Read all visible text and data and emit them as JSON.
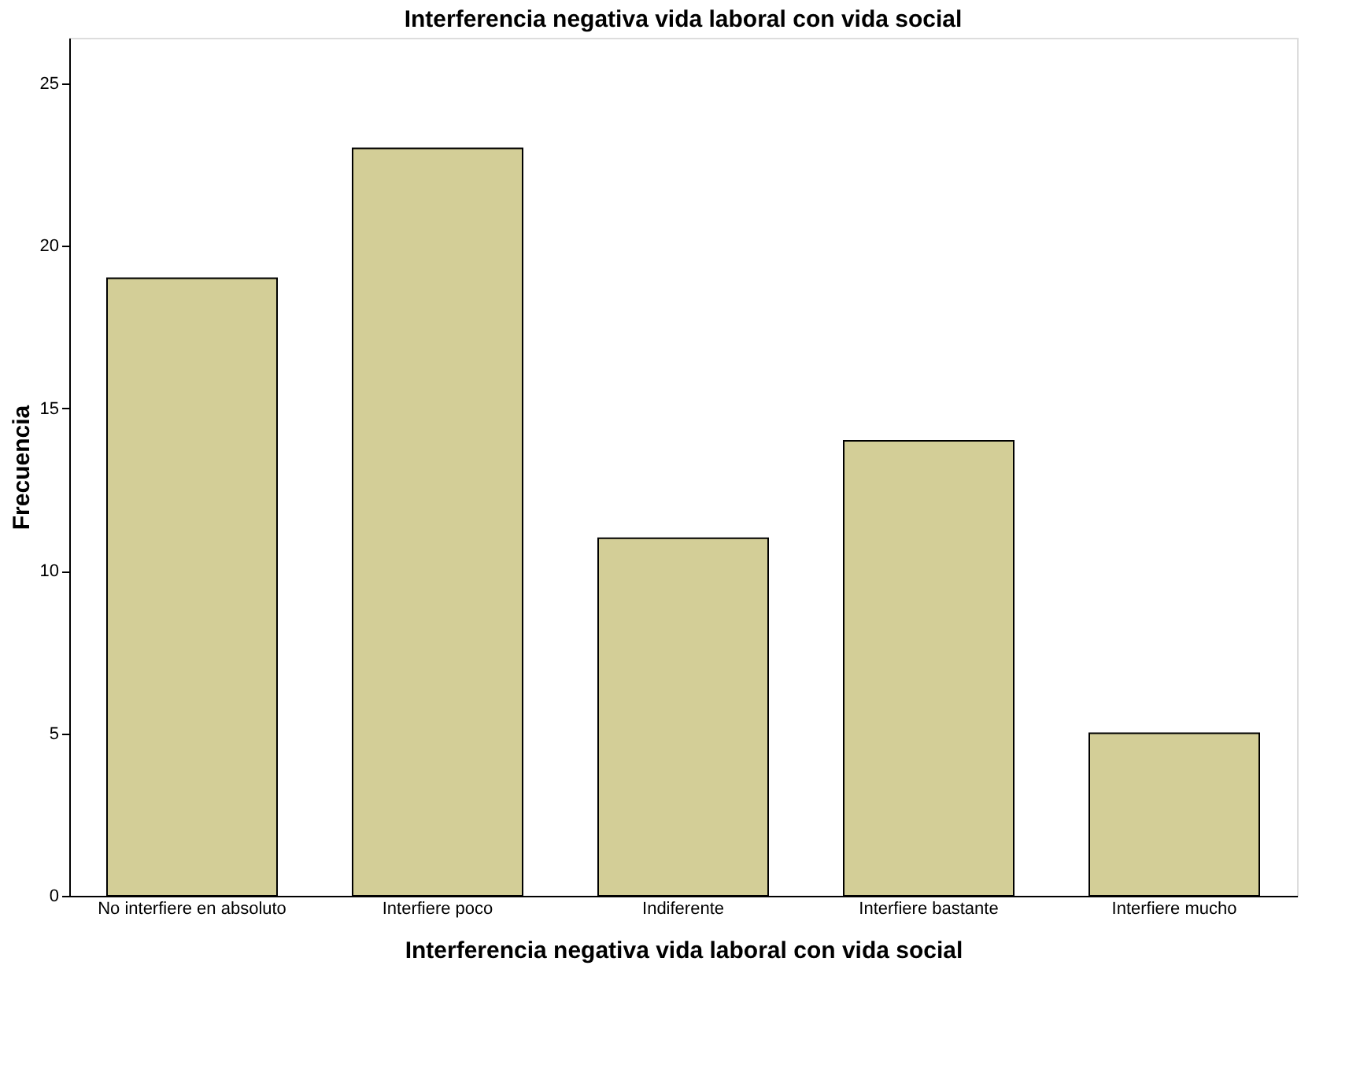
{
  "chart_data": {
    "type": "bar",
    "title": "Interferencia negativa vida laboral con vida social",
    "xlabel": "Interferencia negativa vida laboral con vida social",
    "ylabel": "Frecuencia",
    "categories": [
      "No interfiere en absoluto",
      "Interfiere poco",
      "Indiferente",
      "Interfiere bastante",
      "Interfiere mucho"
    ],
    "values": [
      19,
      23,
      11,
      14,
      5
    ],
    "color": "#d3ce97",
    "ylim": [
      0,
      26.4
    ],
    "yticks": [
      0,
      5,
      10,
      15,
      20,
      25
    ],
    "grid": false
  }
}
